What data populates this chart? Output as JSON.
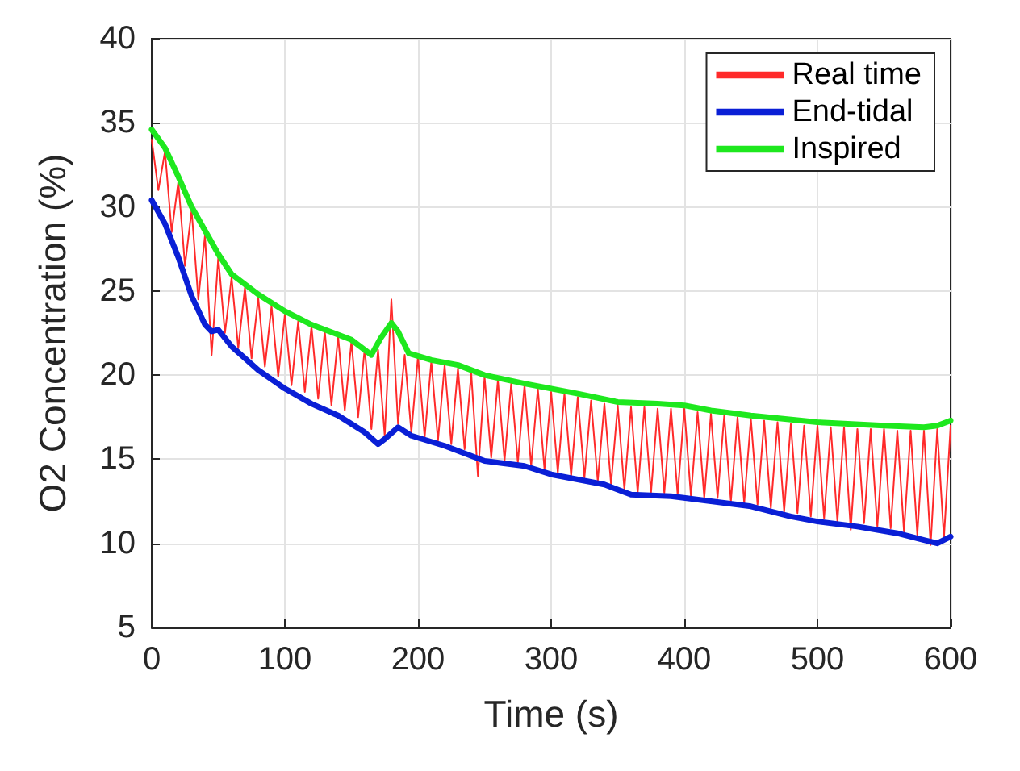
{
  "chart_data": {
    "type": "line",
    "xlabel": "Time (s)",
    "ylabel": "O2 Concentration (%)",
    "xlim": [
      0,
      600
    ],
    "xticks": [
      0,
      100,
      200,
      300,
      400,
      500,
      600
    ],
    "ylim": [
      5,
      40
    ],
    "yticks": [
      5,
      10,
      15,
      20,
      25,
      30,
      35,
      40
    ],
    "grid": true,
    "legend": "top right",
    "marker": "none",
    "line_style": "solid",
    "series": [
      {
        "name": "Real time",
        "color": "#ff2a2a",
        "x": [
          0,
          5,
          10,
          15,
          20,
          25,
          30,
          35,
          40,
          45,
          50,
          55,
          60,
          65,
          70,
          75,
          80,
          85,
          90,
          95,
          100,
          105,
          110,
          115,
          120,
          125,
          130,
          135,
          140,
          145,
          150,
          155,
          160,
          165,
          170,
          175,
          180,
          185,
          190,
          195,
          200,
          205,
          210,
          215,
          220,
          225,
          230,
          235,
          240,
          245,
          250,
          255,
          260,
          265,
          270,
          275,
          280,
          285,
          290,
          295,
          300,
          305,
          310,
          315,
          320,
          325,
          330,
          335,
          340,
          345,
          350,
          355,
          360,
          365,
          370,
          375,
          380,
          385,
          390,
          395,
          400,
          405,
          410,
          415,
          420,
          425,
          430,
          435,
          440,
          445,
          450,
          455,
          460,
          465,
          470,
          475,
          480,
          485,
          490,
          495,
          500,
          505,
          510,
          515,
          520,
          525,
          530,
          535,
          540,
          545,
          550,
          555,
          560,
          565,
          570,
          575,
          580,
          585,
          590,
          595,
          600
        ],
        "values": [
          34,
          31,
          33.3,
          28.5,
          31.5,
          26.5,
          29.8,
          24.5,
          28.3,
          21.2,
          27,
          22.5,
          25.8,
          21.6,
          25.2,
          21,
          24.6,
          20.5,
          24.1,
          19.9,
          23.6,
          19.4,
          23.2,
          19,
          22.9,
          18.6,
          22.6,
          18.2,
          22.3,
          17.9,
          22,
          17.5,
          21.6,
          16.8,
          21.5,
          16.4,
          24.5,
          17.1,
          21.2,
          16.6,
          21.1,
          16.3,
          20.8,
          16.1,
          20.6,
          15.9,
          20.4,
          15.6,
          20.1,
          14,
          19.9,
          15.1,
          19.7,
          14.9,
          19.5,
          14.8,
          19.4,
          14.6,
          19.2,
          14.4,
          19,
          14.2,
          18.9,
          14,
          18.7,
          13.9,
          18.5,
          13.7,
          18.3,
          13.5,
          18.2,
          13.2,
          18.1,
          13,
          18.1,
          13,
          18,
          13,
          18,
          12.9,
          18,
          12.8,
          17.8,
          12.7,
          17.7,
          12.7,
          17.6,
          12.5,
          17.5,
          12.4,
          17.4,
          12.3,
          17.3,
          12.1,
          17.2,
          11.9,
          17.1,
          11.8,
          17,
          11.6,
          17,
          11.5,
          16.9,
          11.3,
          16.9,
          10.8,
          16.8,
          11.2,
          16.8,
          11,
          16.8,
          10.9,
          16.7,
          10.7,
          16.7,
          10.5,
          16.7,
          9.9,
          16.8,
          10.3,
          17
        ]
      },
      {
        "name": "End-tidal",
        "color": "#0a1fd6",
        "x": [
          0,
          10,
          20,
          30,
          40,
          45,
          50,
          60,
          80,
          100,
          120,
          140,
          160,
          170,
          175,
          185,
          195,
          220,
          240,
          250,
          280,
          300,
          340,
          360,
          390,
          420,
          450,
          480,
          500,
          530,
          560,
          580,
          590,
          600
        ],
        "values": [
          30.4,
          29,
          27,
          24.7,
          23,
          22.6,
          22.7,
          21.7,
          20.3,
          19.2,
          18.3,
          17.6,
          16.6,
          15.9,
          16.2,
          16.9,
          16.4,
          15.8,
          15.2,
          14.9,
          14.6,
          14.1,
          13.5,
          12.9,
          12.8,
          12.5,
          12.2,
          11.6,
          11.3,
          11,
          10.6,
          10.2,
          10,
          10.4
        ]
      },
      {
        "name": "Inspired",
        "color": "#1ee81e",
        "x": [
          0,
          10,
          20,
          30,
          40,
          50,
          60,
          80,
          100,
          120,
          140,
          150,
          165,
          172,
          180,
          185,
          193,
          210,
          230,
          250,
          280,
          300,
          320,
          350,
          380,
          400,
          420,
          450,
          500,
          550,
          580,
          590,
          600
        ],
        "values": [
          34.6,
          33.5,
          31.8,
          30,
          28.6,
          27.2,
          26,
          24.8,
          23.8,
          23,
          22.4,
          22.1,
          21.2,
          22.2,
          23.1,
          22.6,
          21.3,
          20.9,
          20.6,
          20,
          19.5,
          19.2,
          18.9,
          18.4,
          18.3,
          18.2,
          17.9,
          17.6,
          17.2,
          17,
          16.9,
          17,
          17.3
        ]
      }
    ]
  }
}
